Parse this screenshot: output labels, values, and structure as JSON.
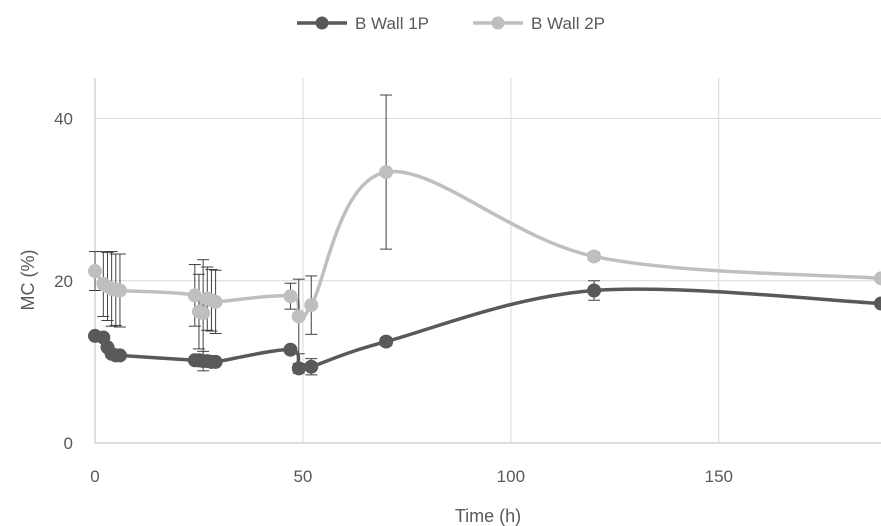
{
  "chart_data": {
    "type": "scatter",
    "smooth": true,
    "xlabel": "Time (h)",
    "ylabel": "MC (%)",
    "xlim": [
      0,
      189
    ],
    "ylim": [
      0,
      45
    ],
    "xticks": [
      0,
      50,
      100,
      150
    ],
    "yticks": [
      0,
      20,
      40
    ],
    "grid": "vertical and horizontal major gridlines",
    "legend": "top-center",
    "series": [
      {
        "name": "B Wall 1P",
        "color": "#595959",
        "points": [
          {
            "x": 0,
            "y": 13.2,
            "err": 0.3
          },
          {
            "x": 2,
            "y": 13.0,
            "err": 0.3
          },
          {
            "x": 3,
            "y": 11.8,
            "err": 0.3
          },
          {
            "x": 4,
            "y": 11.0,
            "err": 0.3
          },
          {
            "x": 5,
            "y": 10.8,
            "err": 0.3
          },
          {
            "x": 6,
            "y": 10.8,
            "err": 0.3
          },
          {
            "x": 24,
            "y": 10.2,
            "err": 0.3
          },
          {
            "x": 25,
            "y": 10.2,
            "err": 0.3
          },
          {
            "x": 26,
            "y": 10.1,
            "err": 1.2
          },
          {
            "x": 27,
            "y": 10.1,
            "err": 0.3
          },
          {
            "x": 28,
            "y": 10.0,
            "err": 0.3
          },
          {
            "x": 29,
            "y": 10.0,
            "err": 0.3
          },
          {
            "x": 47,
            "y": 11.5,
            "err": 0.3
          },
          {
            "x": 49,
            "y": 9.2,
            "err": 0.6
          },
          {
            "x": 52,
            "y": 9.4,
            "err": 1.0
          },
          {
            "x": 70,
            "y": 12.5,
            "err": 0.5
          },
          {
            "x": 120,
            "y": 18.8,
            "err": 1.2
          },
          {
            "x": 189,
            "y": 17.2,
            "err": 0.3
          }
        ]
      },
      {
        "name": "B Wall 2P",
        "color": "#bfbfbf",
        "points": [
          {
            "x": 0,
            "y": 21.2,
            "err": 2.4
          },
          {
            "x": 2,
            "y": 19.6,
            "err": 4.0
          },
          {
            "x": 3,
            "y": 19.3,
            "err": 4.2
          },
          {
            "x": 4,
            "y": 19.0,
            "err": 4.6
          },
          {
            "x": 5,
            "y": 18.9,
            "err": 4.4
          },
          {
            "x": 6,
            "y": 18.8,
            "err": 4.5
          },
          {
            "x": 24,
            "y": 18.2,
            "err": 3.8
          },
          {
            "x": 25,
            "y": 16.2,
            "err": 4.6
          },
          {
            "x": 26,
            "y": 16.0,
            "err": 6.6
          },
          {
            "x": 27,
            "y": 17.8,
            "err": 3.9
          },
          {
            "x": 28,
            "y": 17.6,
            "err": 3.8
          },
          {
            "x": 29,
            "y": 17.4,
            "err": 3.9
          },
          {
            "x": 47,
            "y": 18.1,
            "err": 1.6
          },
          {
            "x": 49,
            "y": 15.6,
            "err": 4.6
          },
          {
            "x": 52,
            "y": 17.0,
            "err": 3.6
          },
          {
            "x": 70,
            "y": 33.4,
            "err": 9.5
          },
          {
            "x": 120,
            "y": 23.0,
            "err": 0.5
          },
          {
            "x": 189,
            "y": 20.3,
            "err": 0.3
          }
        ]
      }
    ]
  }
}
